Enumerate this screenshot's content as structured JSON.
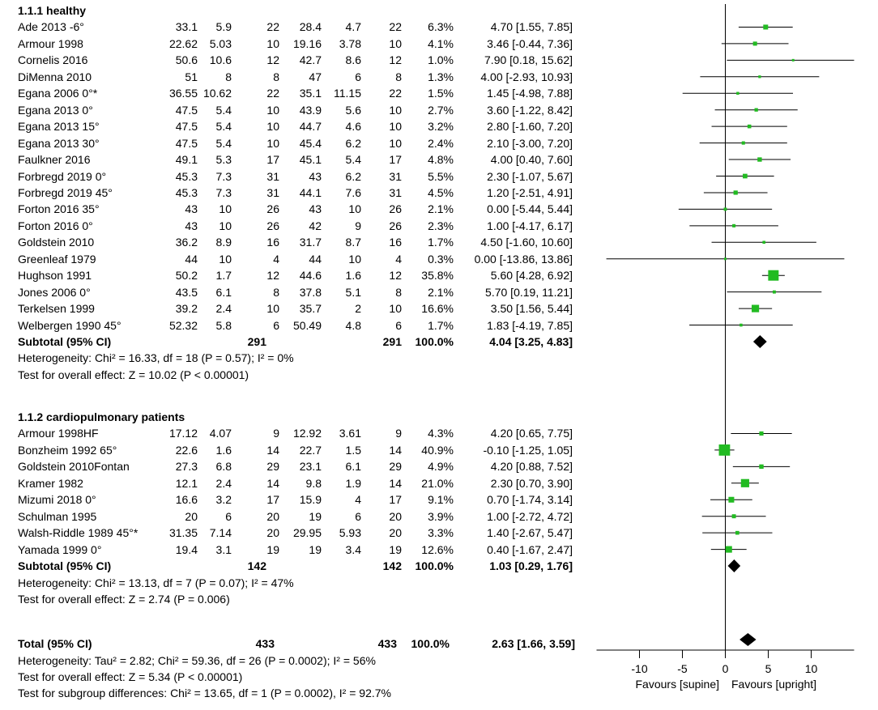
{
  "chart_data": {
    "type": "forest",
    "x_axis": {
      "min": -15,
      "max": 15,
      "ticks": [
        -10,
        -5,
        0,
        5,
        10
      ],
      "tick_labels": [
        "-10",
        "-5",
        "0",
        "5",
        "10"
      ],
      "left_label": "Favours [supine]",
      "right_label": "Favours [upright]"
    },
    "subgroups": [
      {
        "title": "1.1.1 healthy",
        "studies": [
          {
            "name": "Ade 2013 -6°",
            "m1": "33.1",
            "sd1": "5.9",
            "n1": "22",
            "m2": "28.4",
            "sd2": "4.7",
            "n2": "22",
            "weight": "6.3%",
            "ci_text": "4.70 [1.55, 7.85]",
            "est": 4.7,
            "lo": 1.55,
            "hi": 7.85,
            "w": 6.3
          },
          {
            "name": "Armour 1998",
            "m1": "22.62",
            "sd1": "5.03",
            "n1": "10",
            "m2": "19.16",
            "sd2": "3.78",
            "n2": "10",
            "weight": "4.1%",
            "ci_text": "3.46 [-0.44, 7.36]",
            "est": 3.46,
            "lo": -0.44,
            "hi": 7.36,
            "w": 4.1
          },
          {
            "name": "Cornelis 2016",
            "m1": "50.6",
            "sd1": "10.6",
            "n1": "12",
            "m2": "42.7",
            "sd2": "8.6",
            "n2": "12",
            "weight": "1.0%",
            "ci_text": "7.90 [0.18, 15.62]",
            "est": 7.9,
            "lo": 0.18,
            "hi": 15.62,
            "w": 1.0
          },
          {
            "name": "DiMenna 2010",
            "m1": "51",
            "sd1": "8",
            "n1": "8",
            "m2": "47",
            "sd2": "6",
            "n2": "8",
            "weight": "1.3%",
            "ci_text": "4.00 [-2.93, 10.93]",
            "est": 4.0,
            "lo": -2.93,
            "hi": 10.93,
            "w": 1.3
          },
          {
            "name": "Egana 2006 0°*",
            "m1": "36.55",
            "sd1": "10.62",
            "n1": "22",
            "m2": "35.1",
            "sd2": "11.15",
            "n2": "22",
            "weight": "1.5%",
            "ci_text": "1.45 [-4.98, 7.88]",
            "est": 1.45,
            "lo": -4.98,
            "hi": 7.88,
            "w": 1.5
          },
          {
            "name": "Egana 2013 0°",
            "m1": "47.5",
            "sd1": "5.4",
            "n1": "10",
            "m2": "43.9",
            "sd2": "5.6",
            "n2": "10",
            "weight": "2.7%",
            "ci_text": "3.60 [-1.22, 8.42]",
            "est": 3.6,
            "lo": -1.22,
            "hi": 8.42,
            "w": 2.7
          },
          {
            "name": "Egana 2013 15°",
            "m1": "47.5",
            "sd1": "5.4",
            "n1": "10",
            "m2": "44.7",
            "sd2": "4.6",
            "n2": "10",
            "weight": "3.2%",
            "ci_text": "2.80 [-1.60, 7.20]",
            "est": 2.8,
            "lo": -1.6,
            "hi": 7.2,
            "w": 3.2
          },
          {
            "name": "Egana 2013 30°",
            "m1": "47.5",
            "sd1": "5.4",
            "n1": "10",
            "m2": "45.4",
            "sd2": "6.2",
            "n2": "10",
            "weight": "2.4%",
            "ci_text": "2.10 [-3.00, 7.20]",
            "est": 2.1,
            "lo": -3.0,
            "hi": 7.2,
            "w": 2.4
          },
          {
            "name": "Faulkner 2016",
            "m1": "49.1",
            "sd1": "5.3",
            "n1": "17",
            "m2": "45.1",
            "sd2": "5.4",
            "n2": "17",
            "weight": "4.8%",
            "ci_text": "4.00 [0.40, 7.60]",
            "est": 4.0,
            "lo": 0.4,
            "hi": 7.6,
            "w": 4.8
          },
          {
            "name": "Forbregd 2019 0°",
            "m1": "45.3",
            "sd1": "7.3",
            "n1": "31",
            "m2": "43",
            "sd2": "6.2",
            "n2": "31",
            "weight": "5.5%",
            "ci_text": "2.30 [-1.07, 5.67]",
            "est": 2.3,
            "lo": -1.07,
            "hi": 5.67,
            "w": 5.5
          },
          {
            "name": "Forbregd 2019 45°",
            "m1": "45.3",
            "sd1": "7.3",
            "n1": "31",
            "m2": "44.1",
            "sd2": "7.6",
            "n2": "31",
            "weight": "4.5%",
            "ci_text": "1.20 [-2.51, 4.91]",
            "est": 1.2,
            "lo": -2.51,
            "hi": 4.91,
            "w": 4.5
          },
          {
            "name": "Forton  2016 35°",
            "m1": "43",
            "sd1": "10",
            "n1": "26",
            "m2": "43",
            "sd2": "10",
            "n2": "26",
            "weight": "2.1%",
            "ci_text": "0.00 [-5.44, 5.44]",
            "est": 0.0,
            "lo": -5.44,
            "hi": 5.44,
            "w": 2.1
          },
          {
            "name": "Forton 2016 0°",
            "m1": "43",
            "sd1": "10",
            "n1": "26",
            "m2": "42",
            "sd2": "9",
            "n2": "26",
            "weight": "2.3%",
            "ci_text": "1.00 [-4.17, 6.17]",
            "est": 1.0,
            "lo": -4.17,
            "hi": 6.17,
            "w": 2.3
          },
          {
            "name": "Goldstein 2010",
            "m1": "36.2",
            "sd1": "8.9",
            "n1": "16",
            "m2": "31.7",
            "sd2": "8.7",
            "n2": "16",
            "weight": "1.7%",
            "ci_text": "4.50 [-1.60, 10.60]",
            "est": 4.5,
            "lo": -1.6,
            "hi": 10.6,
            "w": 1.7
          },
          {
            "name": "Greenleaf 1979",
            "m1": "44",
            "sd1": "10",
            "n1": "4",
            "m2": "44",
            "sd2": "10",
            "n2": "4",
            "weight": "0.3%",
            "ci_text": "0.00 [-13.86, 13.86]",
            "est": 0.0,
            "lo": -13.86,
            "hi": 13.86,
            "w": 0.3
          },
          {
            "name": "Hughson 1991",
            "m1": "50.2",
            "sd1": "1.7",
            "n1": "12",
            "m2": "44.6",
            "sd2": "1.6",
            "n2": "12",
            "weight": "35.8%",
            "ci_text": "5.60 [4.28, 6.92]",
            "est": 5.6,
            "lo": 4.28,
            "hi": 6.92,
            "w": 35.8
          },
          {
            "name": "Jones 2006 0°",
            "m1": "43.5",
            "sd1": "6.1",
            "n1": "8",
            "m2": "37.8",
            "sd2": "5.1",
            "n2": "8",
            "weight": "2.1%",
            "ci_text": "5.70 [0.19, 11.21]",
            "est": 5.7,
            "lo": 0.19,
            "hi": 11.21,
            "w": 2.1
          },
          {
            "name": "Terkelsen 1999",
            "m1": "39.2",
            "sd1": "2.4",
            "n1": "10",
            "m2": "35.7",
            "sd2": "2",
            "n2": "10",
            "weight": "16.6%",
            "ci_text": "3.50 [1.56, 5.44]",
            "est": 3.5,
            "lo": 1.56,
            "hi": 5.44,
            "w": 16.6
          },
          {
            "name": "Welbergen  1990 45°",
            "m1": "52.32",
            "sd1": "5.8",
            "n1": "6",
            "m2": "50.49",
            "sd2": "4.8",
            "n2": "6",
            "weight": "1.7%",
            "ci_text": "1.83 [-4.19, 7.85]",
            "est": 1.83,
            "lo": -4.19,
            "hi": 7.85,
            "w": 1.7
          }
        ],
        "subtotal": {
          "label": "Subtotal (95% CI)",
          "n1": "291",
          "n2": "291",
          "weight": "100.0%",
          "ci_text": "4.04 [3.25, 4.83]",
          "est": 4.04,
          "lo": 3.25,
          "hi": 4.83
        },
        "heterogeneity": "Heterogeneity: Chi² = 16.33, df = 18 (P = 0.57); I² = 0%",
        "overall": "Test for overall effect: Z = 10.02 (P < 0.00001)"
      },
      {
        "title": "1.1.2 cardiopulmonary patients",
        "studies": [
          {
            "name": "Armour 1998HF",
            "m1": "17.12",
            "sd1": "4.07",
            "n1": "9",
            "m2": "12.92",
            "sd2": "3.61",
            "n2": "9",
            "weight": "4.3%",
            "ci_text": "4.20 [0.65, 7.75]",
            "est": 4.2,
            "lo": 0.65,
            "hi": 7.75,
            "w": 4.3
          },
          {
            "name": "Bonzheim 1992 65°",
            "m1": "22.6",
            "sd1": "1.6",
            "n1": "14",
            "m2": "22.7",
            "sd2": "1.5",
            "n2": "14",
            "weight": "40.9%",
            "ci_text": "-0.10 [-1.25, 1.05]",
            "est": -0.1,
            "lo": -1.25,
            "hi": 1.05,
            "w": 40.9
          },
          {
            "name": "Goldstein 2010Fontan",
            "m1": "27.3",
            "sd1": "6.8",
            "n1": "29",
            "m2": "23.1",
            "sd2": "6.1",
            "n2": "29",
            "weight": "4.9%",
            "ci_text": "4.20 [0.88, 7.52]",
            "est": 4.2,
            "lo": 0.88,
            "hi": 7.52,
            "w": 4.9
          },
          {
            "name": "Kramer 1982",
            "m1": "12.1",
            "sd1": "2.4",
            "n1": "14",
            "m2": "9.8",
            "sd2": "1.9",
            "n2": "14",
            "weight": "21.0%",
            "ci_text": "2.30 [0.70, 3.90]",
            "est": 2.3,
            "lo": 0.7,
            "hi": 3.9,
            "w": 21.0
          },
          {
            "name": "Mizumi  2018 0°",
            "m1": "16.6",
            "sd1": "3.2",
            "n1": "17",
            "m2": "15.9",
            "sd2": "4",
            "n2": "17",
            "weight": "9.1%",
            "ci_text": "0.70 [-1.74, 3.14]",
            "est": 0.7,
            "lo": -1.74,
            "hi": 3.14,
            "w": 9.1
          },
          {
            "name": "Schulman  1995",
            "m1": "20",
            "sd1": "6",
            "n1": "20",
            "m2": "19",
            "sd2": "6",
            "n2": "20",
            "weight": "3.9%",
            "ci_text": "1.00 [-2.72, 4.72]",
            "est": 1.0,
            "lo": -2.72,
            "hi": 4.72,
            "w": 3.9
          },
          {
            "name": "Walsh-Riddle 1989 45°*",
            "m1": "31.35",
            "sd1": "7.14",
            "n1": "20",
            "m2": "29.95",
            "sd2": "5.93",
            "n2": "20",
            "weight": "3.3%",
            "ci_text": "1.40 [-2.67, 5.47]",
            "est": 1.4,
            "lo": -2.67,
            "hi": 5.47,
            "w": 3.3
          },
          {
            "name": "Yamada  1999 0°",
            "m1": "19.4",
            "sd1": "3.1",
            "n1": "19",
            "m2": "19",
            "sd2": "3.4",
            "n2": "19",
            "weight": "12.6%",
            "ci_text": "0.40 [-1.67, 2.47]",
            "est": 0.4,
            "lo": -1.67,
            "hi": 2.47,
            "w": 12.6
          }
        ],
        "subtotal": {
          "label": "Subtotal (95% CI)",
          "n1": "142",
          "n2": "142",
          "weight": "100.0%",
          "ci_text": "1.03 [0.29, 1.76]",
          "est": 1.03,
          "lo": 0.29,
          "hi": 1.76
        },
        "heterogeneity": "Heterogeneity: Chi² = 13.13, df = 7 (P = 0.07); I² = 47%",
        "overall": "Test for overall effect: Z = 2.74 (P = 0.006)"
      }
    ],
    "total": {
      "label": "Total (95% CI)",
      "n1": "433",
      "n2": "433",
      "weight": "100.0%",
      "ci_text": "2.63 [1.66, 3.59]",
      "est": 2.63,
      "lo": 1.66,
      "hi": 3.59,
      "heterogeneity": "Heterogeneity: Tau² = 2.82; Chi² = 59.36, df = 26 (P = 0.0002); I² = 56%",
      "overall": "Test for overall effect: Z = 5.34 (P < 0.00001)",
      "subgroup_diff": "Test for subgroup differences: Chi² = 13.65, df = 1 (P = 0.0002), I² = 92.7%"
    },
    "colors": {
      "marker": "#22bb22",
      "diamond": "#000000",
      "line": "#000000"
    }
  }
}
